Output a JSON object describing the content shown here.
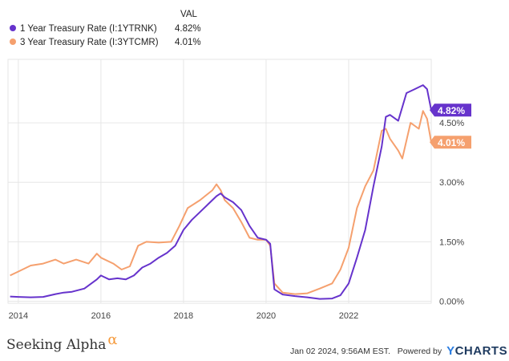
{
  "legend": {
    "header": "VAL",
    "items": [
      {
        "label": "1 Year Treasury Rate (I:1YTRNK)",
        "value": "4.82%",
        "color": "#6633cc"
      },
      {
        "label": "3 Year Treasury Rate (I:3YTCMR)",
        "value": "4.01%",
        "color": "#f5a06e"
      }
    ]
  },
  "chart_data": {
    "type": "line",
    "xlim": [
      2013.75,
      2024.0
    ],
    "ylim": [
      -0.05,
      6.1
    ],
    "x_ticks": [
      "2014",
      "2016",
      "2018",
      "2020",
      "2022"
    ],
    "y_ticks": [
      "0.00%",
      "1.50%",
      "3.00%",
      "4.50%"
    ],
    "grid": true,
    "series": [
      {
        "name": "1 Year Treasury Rate (I:1YTRNK)",
        "color": "#6633cc",
        "end_label": "4.82%",
        "points": [
          [
            2013.8,
            0.12
          ],
          [
            2014.0,
            0.11
          ],
          [
            2014.3,
            0.1
          ],
          [
            2014.6,
            0.11
          ],
          [
            2014.9,
            0.18
          ],
          [
            2015.1,
            0.22
          ],
          [
            2015.3,
            0.24
          ],
          [
            2015.6,
            0.32
          ],
          [
            2015.9,
            0.55
          ],
          [
            2016.0,
            0.65
          ],
          [
            2016.2,
            0.55
          ],
          [
            2016.4,
            0.58
          ],
          [
            2016.6,
            0.55
          ],
          [
            2016.8,
            0.65
          ],
          [
            2017.0,
            0.85
          ],
          [
            2017.2,
            0.95
          ],
          [
            2017.4,
            1.1
          ],
          [
            2017.6,
            1.22
          ],
          [
            2017.8,
            1.4
          ],
          [
            2018.0,
            1.8
          ],
          [
            2018.2,
            2.05
          ],
          [
            2018.4,
            2.25
          ],
          [
            2018.6,
            2.45
          ],
          [
            2018.8,
            2.65
          ],
          [
            2018.9,
            2.72
          ],
          [
            2019.0,
            2.62
          ],
          [
            2019.2,
            2.5
          ],
          [
            2019.4,
            2.3
          ],
          [
            2019.6,
            1.9
          ],
          [
            2019.8,
            1.6
          ],
          [
            2020.0,
            1.55
          ],
          [
            2020.1,
            1.45
          ],
          [
            2020.2,
            0.3
          ],
          [
            2020.4,
            0.17
          ],
          [
            2020.7,
            0.13
          ],
          [
            2021.0,
            0.1
          ],
          [
            2021.3,
            0.06
          ],
          [
            2021.6,
            0.07
          ],
          [
            2021.8,
            0.15
          ],
          [
            2022.0,
            0.45
          ],
          [
            2022.2,
            1.1
          ],
          [
            2022.4,
            1.8
          ],
          [
            2022.6,
            2.9
          ],
          [
            2022.8,
            3.9
          ],
          [
            2022.9,
            4.65
          ],
          [
            2023.0,
            4.7
          ],
          [
            2023.2,
            4.55
          ],
          [
            2023.4,
            5.25
          ],
          [
            2023.6,
            5.35
          ],
          [
            2023.8,
            5.45
          ],
          [
            2023.9,
            5.35
          ],
          [
            2024.0,
            4.82
          ]
        ]
      },
      {
        "name": "3 Year Treasury Rate (I:3YTCMR)",
        "color": "#f5a06e",
        "end_label": "4.01%",
        "points": [
          [
            2013.8,
            0.65
          ],
          [
            2014.0,
            0.75
          ],
          [
            2014.3,
            0.9
          ],
          [
            2014.6,
            0.95
          ],
          [
            2014.9,
            1.05
          ],
          [
            2015.1,
            0.95
          ],
          [
            2015.4,
            1.05
          ],
          [
            2015.7,
            0.95
          ],
          [
            2015.9,
            1.2
          ],
          [
            2016.0,
            1.1
          ],
          [
            2016.3,
            0.95
          ],
          [
            2016.5,
            0.8
          ],
          [
            2016.7,
            0.88
          ],
          [
            2016.9,
            1.4
          ],
          [
            2017.1,
            1.5
          ],
          [
            2017.4,
            1.48
          ],
          [
            2017.7,
            1.5
          ],
          [
            2017.9,
            1.9
          ],
          [
            2018.1,
            2.35
          ],
          [
            2018.4,
            2.55
          ],
          [
            2018.7,
            2.8
          ],
          [
            2018.8,
            2.95
          ],
          [
            2018.9,
            2.8
          ],
          [
            2019.0,
            2.55
          ],
          [
            2019.2,
            2.35
          ],
          [
            2019.4,
            2.0
          ],
          [
            2019.6,
            1.6
          ],
          [
            2019.8,
            1.55
          ],
          [
            2020.0,
            1.55
          ],
          [
            2020.1,
            1.4
          ],
          [
            2020.2,
            0.45
          ],
          [
            2020.4,
            0.22
          ],
          [
            2020.7,
            0.18
          ],
          [
            2021.0,
            0.2
          ],
          [
            2021.3,
            0.32
          ],
          [
            2021.6,
            0.45
          ],
          [
            2021.8,
            0.8
          ],
          [
            2022.0,
            1.35
          ],
          [
            2022.2,
            2.35
          ],
          [
            2022.4,
            2.9
          ],
          [
            2022.6,
            3.3
          ],
          [
            2022.8,
            4.3
          ],
          [
            2022.9,
            4.35
          ],
          [
            2023.0,
            4.1
          ],
          [
            2023.2,
            3.8
          ],
          [
            2023.3,
            3.6
          ],
          [
            2023.5,
            4.5
          ],
          [
            2023.7,
            4.35
          ],
          [
            2023.8,
            4.8
          ],
          [
            2023.9,
            4.6
          ],
          [
            2024.0,
            4.01
          ]
        ]
      }
    ]
  },
  "footer": {
    "logo": "Seeking Alpha",
    "alpha": "α",
    "timestamp": "Jan 02 2024, 9:56AM EST.",
    "powered": "Powered by",
    "brand_y": "Y",
    "brand_rest": "CHARTS"
  }
}
